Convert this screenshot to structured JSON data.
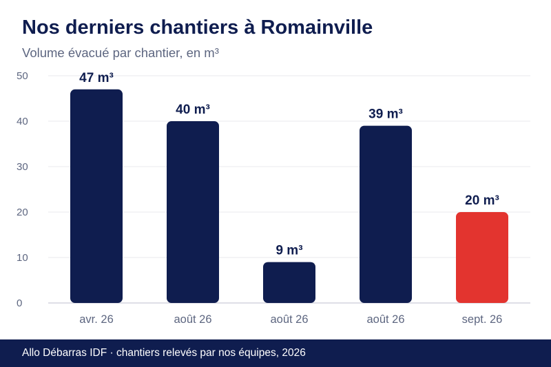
{
  "header": {
    "title": "Nos derniers chantiers à Romainville",
    "subtitle": "Volume évacué par chantier, en m³"
  },
  "footer": {
    "source": "Allo Débarras IDF · chantiers relevés par nos équipes, 2026"
  },
  "colors": {
    "primary": "#0f1d4f",
    "highlight": "#e3342f",
    "grid": "#e8e9ee",
    "axis": "#c9cbd6",
    "tick_text": "#5d6680"
  },
  "chart_data": {
    "type": "bar",
    "title": "Nos derniers chantiers à Romainville",
    "subtitle": "Volume évacué par chantier, en m³",
    "xlabel": "",
    "ylabel": "",
    "categories": [
      "avr. 26",
      "août 26",
      "août 26",
      "août 26",
      "sept. 26"
    ],
    "values": [
      47,
      40,
      9,
      39,
      20
    ],
    "data_labels": [
      "47 m³",
      "40 m³",
      "9 m³",
      "39 m³",
      "20 m³"
    ],
    "highlighted_index": 4,
    "ylim": [
      0,
      50
    ],
    "yticks": [
      0,
      10,
      20,
      30,
      40,
      50
    ],
    "grid": true
  }
}
